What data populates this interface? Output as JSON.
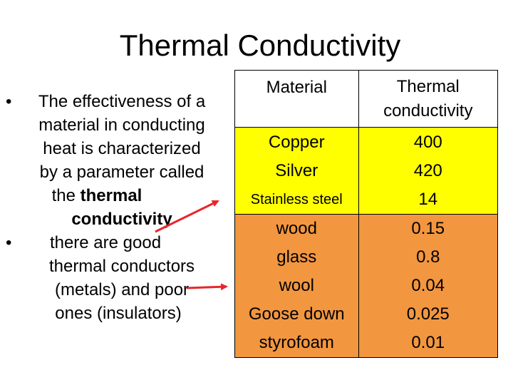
{
  "title": "Thermal Conductivity",
  "bullets": {
    "bullet_char": "•",
    "b1_line1": "The effectiveness of a",
    "b1_line2": "material in conducting",
    "b1_line3": "heat is characterized",
    "b1_line4": "by a parameter called",
    "b1_line5_pre": "the ",
    "b1_line5_bold": "thermal",
    "b1_line6_bold": "conductivity",
    "b2_line1": "there are good",
    "b2_line2": "thermal conductors",
    "b2_line3": "(metals) and poor",
    "b2_line4": "ones (insulators)"
  },
  "table": {
    "header_material": "Material",
    "header_conductivity_l1": "Thermal",
    "header_conductivity_l2": "conductivity",
    "metals_materials": [
      "Copper",
      "Silver",
      "Stainless steel"
    ],
    "metals_values": [
      "400",
      "420",
      "14"
    ],
    "insulators_materials": [
      "wood",
      "glass",
      "wool",
      "Goose down",
      "styrofoam"
    ],
    "insulators_values": [
      "0.15",
      "0.8",
      "0.04",
      "0.025",
      "0.01"
    ],
    "metals_color": "#ffff00",
    "insulators_color": "#f29640"
  },
  "arrow_color": "#e8262a"
}
